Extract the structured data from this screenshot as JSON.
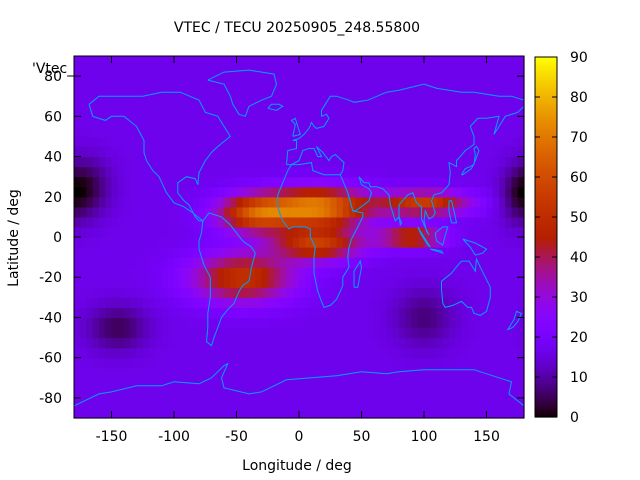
{
  "chart_data": {
    "type": "heatmap",
    "title": "VTEC / TECU 20250905_248.55800",
    "xlabel": "Longitude / deg",
    "ylabel": "Latitude / deg",
    "key_label": "'Vtec_",
    "xlim": [
      -180,
      180
    ],
    "ylim": [
      -90,
      90
    ],
    "x_ticks": [
      -150,
      -100,
      -50,
      0,
      50,
      100,
      150
    ],
    "x_tick_labels": [
      "-150",
      "-100",
      "-50",
      "0",
      "50",
      "100",
      "150"
    ],
    "y_ticks": [
      -80,
      -60,
      -40,
      -20,
      0,
      20,
      40,
      60,
      80
    ],
    "y_tick_labels": [
      "-80",
      "-60",
      "-40",
      "-20",
      "0",
      "20",
      "40",
      "60",
      "80"
    ],
    "colorbar": {
      "range": [
        0,
        90
      ],
      "ticks": [
        0,
        10,
        20,
        30,
        40,
        50,
        60,
        70,
        80,
        90
      ],
      "tick_labels": [
        "0",
        "10",
        "20",
        "30",
        "40",
        "50",
        "60",
        "70",
        "80",
        "90"
      ],
      "palette": "black-blue-purple-red-orange-yellow"
    },
    "grid_resolution_deg": {
      "lon": 5,
      "lat": 5
    },
    "background_vtec": 17,
    "features": [
      {
        "name": "equatorial anomaly crest north (Africa)",
        "lon": 15,
        "lat": 15,
        "vtec": 72,
        "lon_width": 40,
        "lat_width": 9
      },
      {
        "name": "equatorial anomaly crest north (Atlantic)",
        "lon": -35,
        "lat": 12,
        "vtec": 58,
        "lon_width": 30,
        "lat_width": 9
      },
      {
        "name": "equatorial anomaly crest north (Asia)",
        "lon": 100,
        "lat": 17,
        "vtec": 55,
        "lon_width": 35,
        "lat_width": 6
      },
      {
        "name": "equatorial anomaly crest south (Africa)",
        "lon": 15,
        "lat": -3,
        "vtec": 55,
        "lon_width": 35,
        "lat_width": 8
      },
      {
        "name": "equatorial anomaly crest south (Indian Ocean)",
        "lon": 90,
        "lat": 0,
        "vtec": 52,
        "lon_width": 25,
        "lat_width": 5
      },
      {
        "name": "southern crest (South America)",
        "lon": -45,
        "lat": -20,
        "vtec": 52,
        "lon_width": 40,
        "lat_width": 12
      },
      {
        "name": "minimum North Pacific",
        "lon": -170,
        "lat": 25,
        "vtec": 4,
        "lon_width": 20,
        "lat_width": 15
      },
      {
        "name": "minimum South Pacific",
        "lon": -145,
        "lat": -45,
        "vtec": 5,
        "lon_width": 25,
        "lat_width": 12
      },
      {
        "name": "minimum Southern Indian Ocean",
        "lon": 100,
        "lat": -40,
        "vtec": 7,
        "lon_width": 25,
        "lat_width": 15
      },
      {
        "name": "minimum near dateline north",
        "lon": 175,
        "lat": 20,
        "vtec": 8,
        "lon_width": 15,
        "lat_width": 15
      }
    ],
    "overlay": "coastlines",
    "overlay_color": "#00a0ff",
    "grid": false,
    "legend_position": "top-left"
  }
}
